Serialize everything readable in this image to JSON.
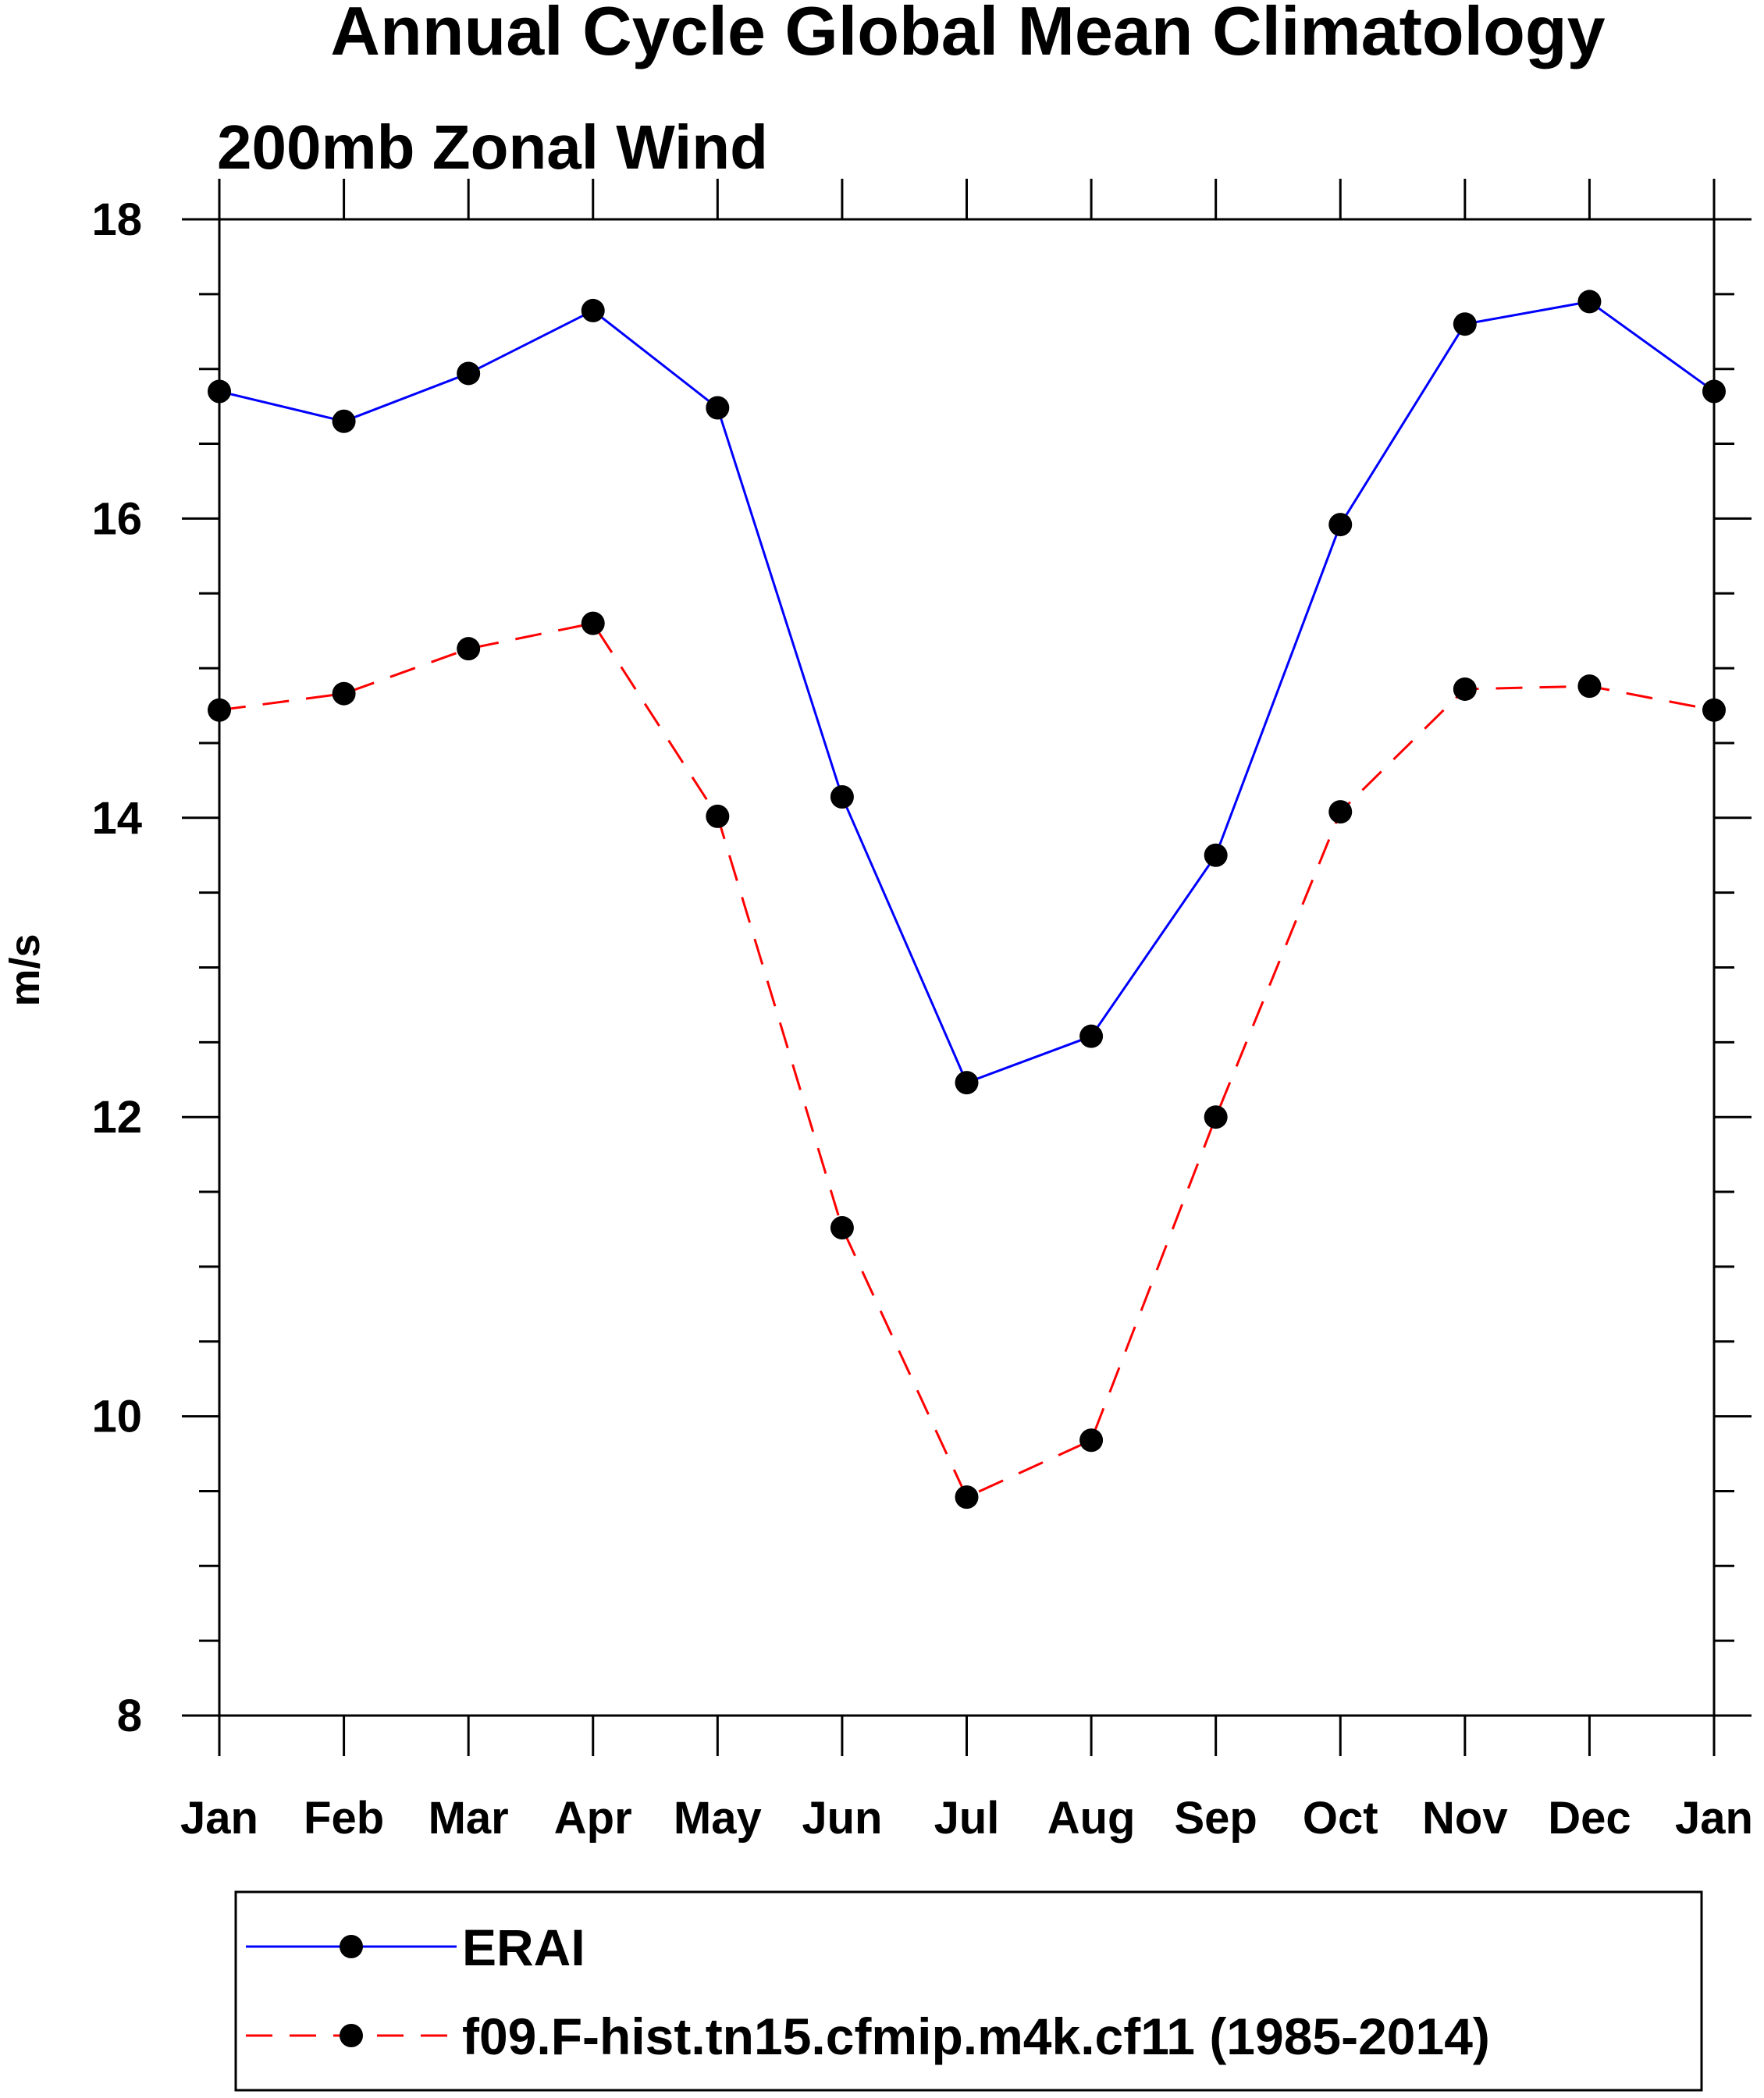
{
  "chart_data": {
    "type": "line",
    "title": "Annual Cycle Global Mean Climatology",
    "subtitle": "200mb Zonal Wind",
    "xlabel": "",
    "ylabel": "m/s",
    "categories": [
      "Jan",
      "Feb",
      "Mar",
      "Apr",
      "May",
      "Jun",
      "Jul",
      "Aug",
      "Sep",
      "Oct",
      "Nov",
      "Dec",
      "Jan"
    ],
    "ylim": [
      8,
      18
    ],
    "yticks": [
      "8",
      "10",
      "12",
      "14",
      "16",
      "18"
    ],
    "grid": false,
    "legend_position": "bottom",
    "series": [
      {
        "name": "ERAI",
        "color": "#0000ff",
        "line_style": "solid",
        "marker": "filled-circle",
        "values": [
          16.85,
          16.65,
          16.97,
          17.39,
          16.74,
          14.14,
          12.23,
          12.54,
          13.75,
          15.96,
          17.3,
          17.45,
          16.85
        ]
      },
      {
        "name": "f09.F-hist.tn15.cfmip.m4k.cf11 (1985-2014)",
        "color": "#ff0000",
        "line_style": "dashed",
        "marker": "filled-circle",
        "values": [
          14.72,
          14.83,
          15.13,
          15.3,
          14.01,
          11.26,
          9.46,
          9.84,
          12.0,
          14.04,
          14.86,
          14.88,
          14.72
        ]
      }
    ]
  }
}
